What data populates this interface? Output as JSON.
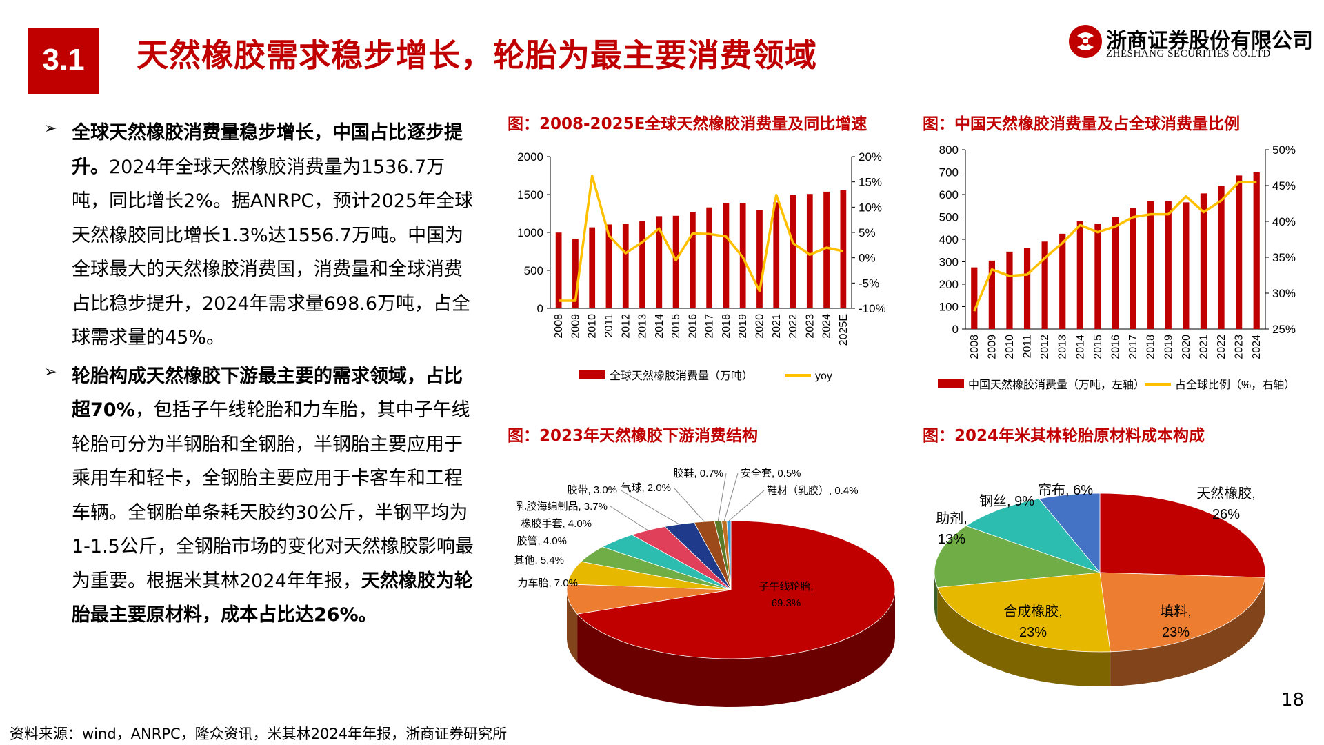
{
  "header": {
    "section_number": "3.1",
    "title": "天然橡胶需求稳步增长，轮胎为最主要消费领域",
    "company_cn": "浙商证券股份有限公司",
    "company_en": "ZHESHANG SECURITIES CO.LTD"
  },
  "body": {
    "bullet1": {
      "bold": "全球天然橡胶消费量稳步增长，中国占比逐步提升。",
      "text": "2024年全球天然橡胶消费量为1536.7万吨，同比增长2%。据ANRPC，预计2025年全球天然橡胶同比增长1.3%达1556.7万吨。中国为全球最大的天然橡胶消费国，消费量和全球消费占比稳步提升，2024年需求量698.6万吨，占全球需求量的45%。"
    },
    "bullet2": {
      "bold1": "轮胎构成天然橡胶下游最主要的需求领域，占比超70%",
      "text1": "，包括子午线轮胎和力车胎，其中子午线轮胎可分为半钢胎和全钢胎，半钢胎主要应用于乘用车和轻卡，全钢胎主要应用于卡客车和工程车辆。全钢胎单条耗天胶约30公斤，半钢平均为1-1.5公斤，全钢胎市场的变化对天然橡胶影响最为重要。根据米其林2024年年报，",
      "bold2": "天然橡胶为轮胎最主要原材料，成本占比达26%。"
    }
  },
  "footer": {
    "source": "资料来源：wind，ANRPC，隆众资讯，米其林2024年年报，浙商证券研究所",
    "page_number": "18"
  },
  "colors": {
    "brand_red": "#c00000",
    "bar_red": "#c00000",
    "line_yellow": "#ffc000"
  },
  "chart_titles": {
    "c1": "图：2008-2025E全球天然橡胶消费量及同比增速",
    "c2": "图：中国天然橡胶消费量及占全球消费量比例",
    "c3": "图：2023年天然橡胶下游消费结构",
    "c4": "图：2024年米其林轮胎原材料成本构成"
  },
  "chart_data": [
    {
      "type": "bar",
      "categories": [
        "2008",
        "2009",
        "2010",
        "2011",
        "2012",
        "2013",
        "2014",
        "2015",
        "2016",
        "2017",
        "2018",
        "2019",
        "2020",
        "2021",
        "2022",
        "2023",
        "2024",
        "2025E"
      ],
      "series": [
        {
          "name": "全球天然橡胶消费量（万吨）",
          "values": [
            998,
            915,
            1067,
            1105,
            1115,
            1150,
            1215,
            1220,
            1272,
            1330,
            1390,
            1391,
            1300,
            1396,
            1493,
            1507,
            1537,
            1557
          ],
          "axis": "left"
        },
        {
          "name": "yoy",
          "values": [
            -8.5,
            -8.5,
            16.2,
            4.4,
            0.9,
            3.1,
            5.8,
            -0.5,
            4.8,
            4.7,
            4.2,
            0.1,
            -6.6,
            12.4,
            2.9,
            0.6,
            2.0,
            1.3
          ],
          "type": "line",
          "axis": "right"
        }
      ],
      "left_ticks": [
        "0",
        "500",
        "1000",
        "1500",
        "2000"
      ],
      "right_ticks": [
        "-10%",
        "-5%",
        "0%",
        "5%",
        "10%",
        "15%",
        "20%"
      ],
      "ylim": [
        0,
        2000
      ],
      "y2lim": [
        -10,
        20
      ],
      "legend_position": "bottom"
    },
    {
      "type": "bar",
      "categories": [
        "2008",
        "2009",
        "2010",
        "2011",
        "2012",
        "2013",
        "2014",
        "2015",
        "2016",
        "2017",
        "2018",
        "2019",
        "2020",
        "2021",
        "2022",
        "2023",
        "2024"
      ],
      "series": [
        {
          "name": "中国天然橡胶消费量（万吨，左轴）",
          "values": [
            275,
            305,
            345,
            360,
            390,
            425,
            480,
            470,
            500,
            540,
            570,
            570,
            565,
            605,
            640,
            685,
            698.6
          ],
          "axis": "left"
        },
        {
          "name": "占全球比例（%，右轴）",
          "values": [
            27.5,
            33.3,
            32.4,
            32.6,
            34.9,
            37.0,
            39.5,
            38.5,
            39.3,
            40.6,
            41.0,
            41.0,
            43.5,
            41.3,
            42.9,
            45.5,
            45.5
          ],
          "type": "line",
          "axis": "right"
        }
      ],
      "left_ticks": [
        "0",
        "100",
        "200",
        "300",
        "400",
        "500",
        "600",
        "700",
        "800"
      ],
      "right_ticks": [
        "25%",
        "30%",
        "35%",
        "40%",
        "45%",
        "50%"
      ],
      "ylim": [
        0,
        800
      ],
      "y2lim": [
        25,
        50
      ],
      "legend_position": "bottom"
    },
    {
      "type": "pie",
      "labels": [
        "子午线轮胎",
        "力车胎",
        "其他",
        "胶管",
        "橡胶手套",
        "乳胶海绵制品",
        "胶带",
        "气球",
        "胶鞋",
        "安全套",
        "鞋材（乳胶）"
      ],
      "values": [
        69.3,
        7.0,
        5.4,
        4.0,
        4.0,
        3.7,
        3.0,
        2.0,
        0.7,
        0.5,
        0.4
      ],
      "display_labels": [
        "子午线轮胎, 69.3%",
        "力车胎, 7.0%",
        "其他, 5.4%",
        "胶管, 4.0%",
        "橡胶手套, 4.0%",
        "乳胶海绵制品, 3.7%",
        "胶带, 3.0%",
        "气球, 2.0%",
        "胶鞋, 0.7%",
        "安全套, 0.5%",
        "鞋材（乳胶）, 0.4%"
      ],
      "colors": [
        "#c00000",
        "#ed7d31",
        "#e6b800",
        "#70ad47",
        "#2cbcb0",
        "#e0405a",
        "#1f3a8a",
        "#9c4a1a",
        "#5a7a28",
        "#c07020",
        "#3a9ad9"
      ]
    },
    {
      "type": "pie",
      "labels": [
        "天然橡胶",
        "填料",
        "合成橡胶",
        "助剂",
        "钢丝",
        "帘布"
      ],
      "values": [
        26,
        23,
        23,
        13,
        9,
        6
      ],
      "display_labels": [
        [
          "天然橡胶,",
          "26%"
        ],
        [
          "填料,",
          "23%"
        ],
        [
          "合成橡胶,",
          "23%"
        ],
        [
          "助剂,",
          "13%"
        ],
        [
          "钢丝, 9%"
        ],
        [
          "帘布, 6%"
        ]
      ],
      "colors": [
        "#c00000",
        "#ed7d31",
        "#e6b800",
        "#70ad47",
        "#2cbcb0",
        "#4472c4"
      ]
    }
  ]
}
